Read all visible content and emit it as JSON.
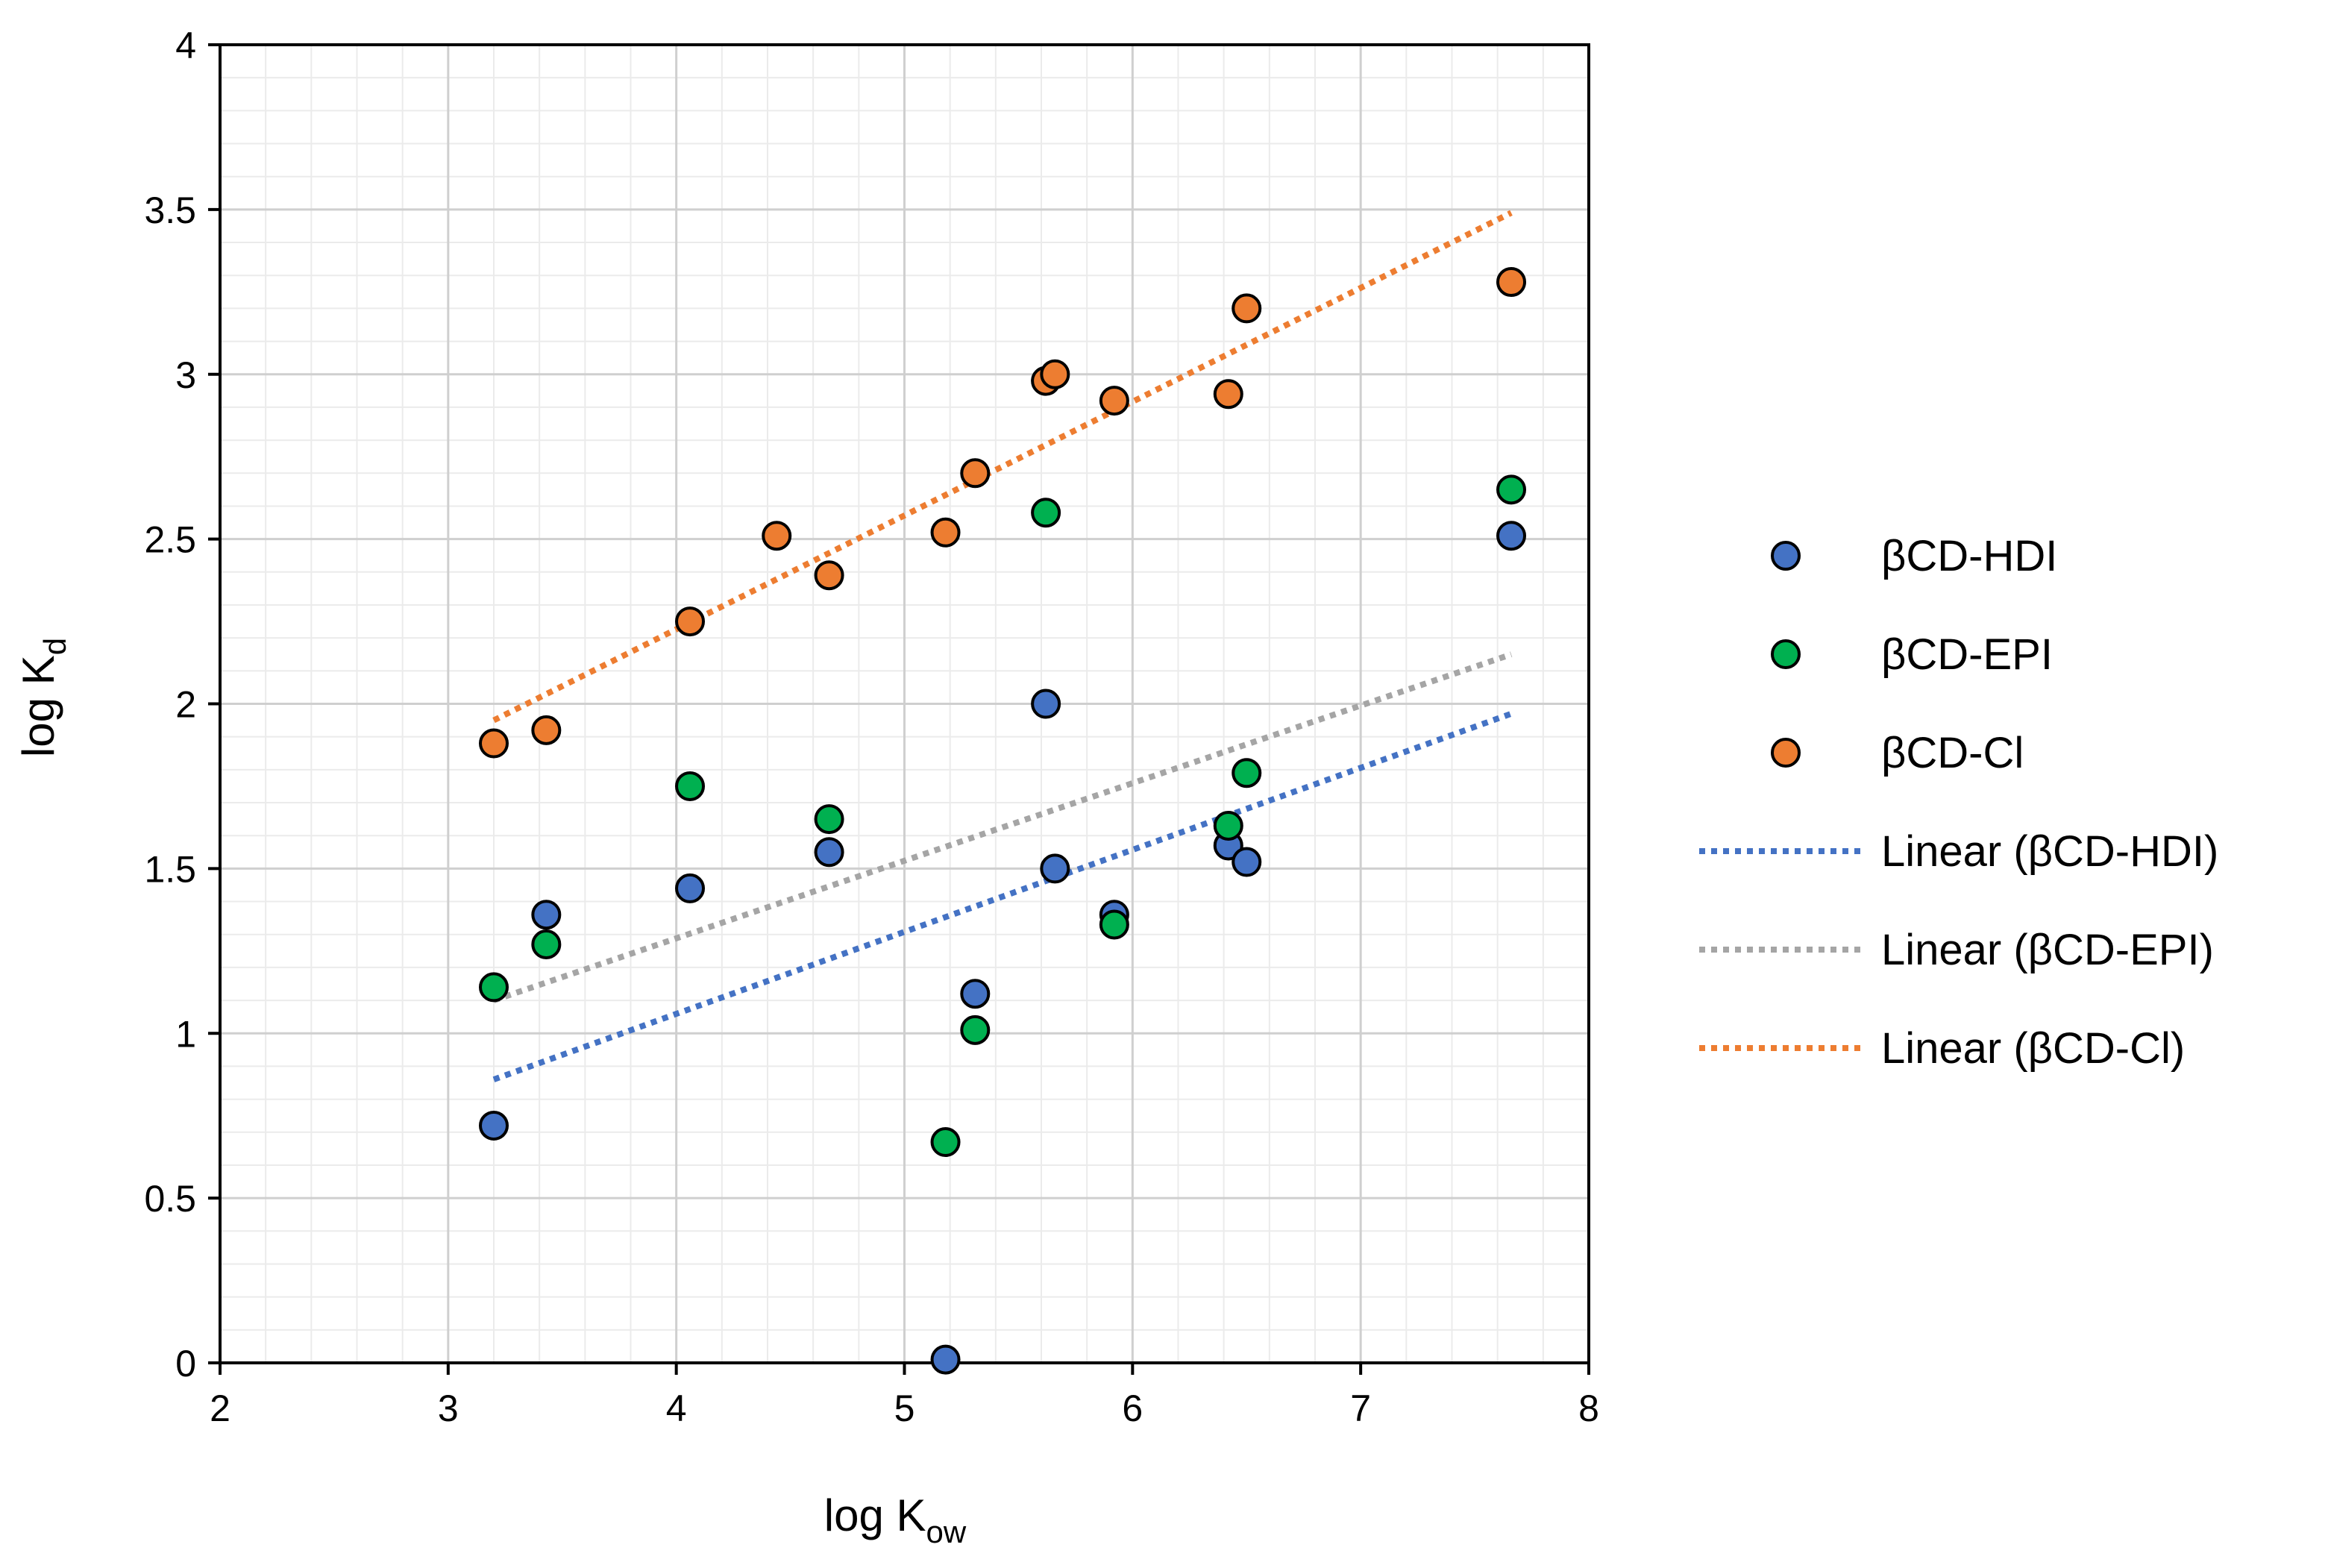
{
  "chart_data": {
    "type": "scatter",
    "title": "",
    "xlabel": {
      "main": "log K",
      "sub": "ow"
    },
    "ylabel": {
      "main": "log K",
      "sub": "d"
    },
    "xlim": [
      2,
      8
    ],
    "ylim": [
      0,
      4
    ],
    "x_ticks": [
      "2",
      "3",
      "4",
      "5",
      "6",
      "7",
      "8"
    ],
    "y_ticks": [
      "0",
      "0.5",
      "1",
      "1.5",
      "2",
      "2.5",
      "3",
      "3.5",
      "4"
    ],
    "grid": "major and minor",
    "legend_position": "right",
    "series": [
      {
        "name": "βCD-HDI",
        "color": "#4472C4",
        "points": [
          [
            3.2,
            0.72
          ],
          [
            3.43,
            1.36
          ],
          [
            4.06,
            1.44
          ],
          [
            4.67,
            1.55
          ],
          [
            5.18,
            0.01
          ],
          [
            5.31,
            1.12
          ],
          [
            5.62,
            2.0
          ],
          [
            5.66,
            1.5
          ],
          [
            5.92,
            1.36
          ],
          [
            6.42,
            1.57
          ],
          [
            6.5,
            1.52
          ],
          [
            7.66,
            2.51
          ]
        ]
      },
      {
        "name": "βCD-EPI",
        "color": "#00B050",
        "points": [
          [
            3.2,
            1.14
          ],
          [
            3.43,
            1.27
          ],
          [
            4.06,
            1.75
          ],
          [
            4.67,
            1.65
          ],
          [
            5.18,
            0.67
          ],
          [
            5.31,
            1.01
          ],
          [
            5.62,
            2.58
          ],
          [
            5.92,
            1.33
          ],
          [
            6.42,
            1.63
          ],
          [
            6.5,
            1.79
          ],
          [
            7.66,
            2.65
          ]
        ]
      },
      {
        "name": "βCD-Cl",
        "color": "#ED7D31",
        "points": [
          [
            3.2,
            1.88
          ],
          [
            3.43,
            1.92
          ],
          [
            4.06,
            2.25
          ],
          [
            4.44,
            2.51
          ],
          [
            4.67,
            2.39
          ],
          [
            5.18,
            2.52
          ],
          [
            5.31,
            2.7
          ],
          [
            5.62,
            2.98
          ],
          [
            5.66,
            3.0
          ],
          [
            5.92,
            2.92
          ],
          [
            6.42,
            2.94
          ],
          [
            6.5,
            3.2
          ],
          [
            7.66,
            3.28
          ]
        ]
      }
    ],
    "trendlines": [
      {
        "name": "Linear (βCD-HDI)",
        "color": "#4472C4",
        "x": [
          3.2,
          7.66
        ],
        "y": [
          0.86,
          1.97
        ]
      },
      {
        "name": "Linear (βCD-EPI)",
        "color": "#A5A5A5",
        "x": [
          3.2,
          7.66
        ],
        "y": [
          1.1,
          2.15
        ]
      },
      {
        "name": "Linear (βCD-Cl)",
        "color": "#ED7D31",
        "x": [
          3.2,
          7.66
        ],
        "y": [
          1.95,
          3.49
        ]
      }
    ]
  }
}
